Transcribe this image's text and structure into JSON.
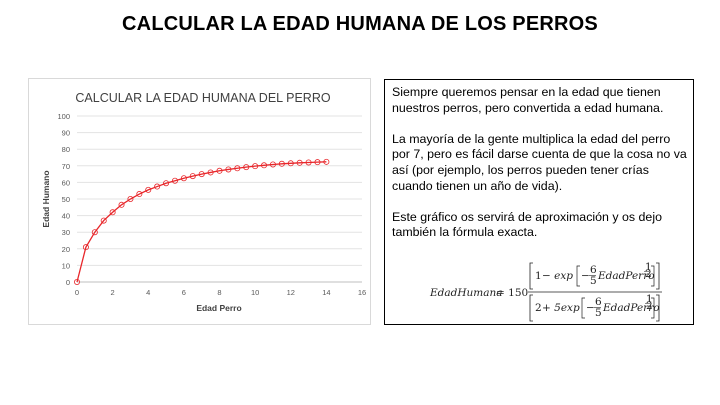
{
  "slide": {
    "title": "CALCULAR LA EDAD HUMANA DE LOS PERROS"
  },
  "chart_data": {
    "type": "line",
    "title": "CALCULAR LA EDAD HUMANA DEL PERRO",
    "xlabel": "Edad Perro",
    "ylabel": "Edad Humano",
    "xlim": [
      0,
      16
    ],
    "ylim": [
      0,
      100
    ],
    "xticks": [
      0,
      2,
      4,
      6,
      8,
      10,
      12,
      14,
      16
    ],
    "yticks": [
      0,
      10,
      20,
      30,
      40,
      50,
      60,
      70,
      80,
      90,
      100
    ],
    "grid": "horizontal",
    "marker": "circle-open",
    "color": "#e8262a",
    "series": [
      {
        "x": [
          0,
          0.5,
          1,
          1.5,
          2,
          2.5,
          3,
          3.5,
          4,
          4.5,
          5,
          5.5,
          6,
          6.5,
          7,
          7.5,
          8,
          8.5,
          9,
          9.5,
          10,
          10.5,
          11,
          11.5,
          12,
          12.5,
          13,
          13.5,
          14
        ],
        "y": [
          0,
          21,
          30,
          37,
          42,
          46.5,
          50,
          53,
          55.5,
          57.5,
          59.5,
          61,
          62.5,
          63.8,
          65,
          66,
          67,
          67.8,
          68.5,
          69.2,
          69.8,
          70.3,
          70.8,
          71.2,
          71.5,
          71.8,
          72,
          72.2,
          72.4
        ]
      }
    ]
  },
  "text": {
    "p1": "Siempre queremos pensar en la edad que tienen nuestros perros, pero convertida a edad humana.",
    "p2": "La mayoría de la gente multiplica la edad del perro por 7, pero es fácil darse cuenta de que la cosa no va así (por ejemplo, los perros pueden tener crías cuando tienen un año de vida).",
    "p3": "Este gráfico os servirá de aproximación y os dejo también la fórmula exacta."
  },
  "formula": {
    "lhs": "EdadHumana",
    "coef": "= 150",
    "num_one": "1",
    "num_minus": "− exp",
    "two": "2",
    "den_plus": "+ 5exp",
    "minus": "−",
    "frac_num": "6",
    "frac_den": "5",
    "var": "EdadPerro",
    "exp_num": "1",
    "exp_den": "2"
  }
}
